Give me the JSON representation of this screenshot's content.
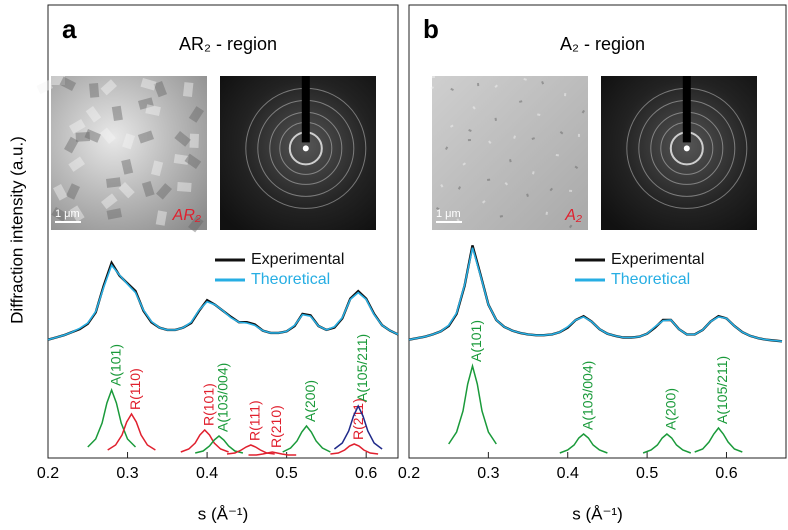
{
  "chart_data": [
    {
      "type": "line",
      "panel": "a",
      "title": "AR₂ - region",
      "ylabel": "Diffraction intensity (a.u.)",
      "xlabel": "s (Å⁻¹)",
      "xlim": [
        0.2,
        0.64
      ],
      "xticks": [
        0.2,
        0.3,
        0.4,
        0.5,
        0.6
      ],
      "ylim": [
        0,
        4.64
      ],
      "peaks_ylim": [
        0,
        1
      ],
      "insets": {
        "scale_bar": "1 μm",
        "label": "AR₂"
      },
      "x": [
        0.2,
        0.21,
        0.22,
        0.23,
        0.24,
        0.25,
        0.26,
        0.27,
        0.28,
        0.29,
        0.3,
        0.31,
        0.32,
        0.33,
        0.34,
        0.35,
        0.36,
        0.37,
        0.38,
        0.39,
        0.4,
        0.41,
        0.42,
        0.43,
        0.44,
        0.45,
        0.46,
        0.47,
        0.48,
        0.49,
        0.5,
        0.51,
        0.52,
        0.53,
        0.54,
        0.55,
        0.56,
        0.57,
        0.58,
        0.59,
        0.6,
        0.61,
        0.62,
        0.63,
        0.64
      ],
      "series": [
        {
          "name": "Experimental",
          "color": "#111111",
          "values": [
            0.24,
            0.27,
            0.3,
            0.34,
            0.38,
            0.45,
            0.6,
            0.95,
            1.25,
            1.08,
            0.98,
            0.88,
            0.62,
            0.47,
            0.4,
            0.37,
            0.37,
            0.4,
            0.46,
            0.62,
            0.76,
            0.7,
            0.62,
            0.54,
            0.47,
            0.47,
            0.44,
            0.36,
            0.33,
            0.33,
            0.35,
            0.42,
            0.58,
            0.56,
            0.42,
            0.37,
            0.4,
            0.52,
            0.78,
            0.88,
            0.78,
            0.58,
            0.43,
            0.36,
            0.31
          ]
        },
        {
          "name": "Theoretical",
          "color": "#27aee3",
          "values": [
            0.24,
            0.27,
            0.3,
            0.34,
            0.39,
            0.46,
            0.61,
            0.93,
            1.22,
            1.09,
            0.97,
            0.86,
            0.63,
            0.48,
            0.4,
            0.37,
            0.37,
            0.4,
            0.47,
            0.63,
            0.74,
            0.7,
            0.62,
            0.53,
            0.47,
            0.46,
            0.43,
            0.36,
            0.33,
            0.33,
            0.35,
            0.43,
            0.57,
            0.55,
            0.42,
            0.37,
            0.41,
            0.53,
            0.77,
            0.86,
            0.77,
            0.57,
            0.43,
            0.36,
            0.31
          ]
        }
      ],
      "peaks": [
        {
          "name": "A(101)",
          "color": "#1a9a3a",
          "x": [
            0.25,
            0.26,
            0.268,
            0.274,
            0.28,
            0.286,
            0.292,
            0.3,
            0.31
          ],
          "values": [
            0.09,
            0.17,
            0.33,
            0.53,
            0.66,
            0.53,
            0.33,
            0.17,
            0.09
          ]
        },
        {
          "name": "R(110)",
          "color": "#e0202e",
          "x": [
            0.275,
            0.285,
            0.293,
            0.299,
            0.305,
            0.311,
            0.317,
            0.325,
            0.335
          ],
          "values": [
            0.06,
            0.11,
            0.21,
            0.34,
            0.42,
            0.34,
            0.21,
            0.11,
            0.06
          ]
        },
        {
          "name": "R(101)",
          "color": "#e0202e",
          "x": [
            0.367,
            0.377,
            0.385,
            0.391,
            0.397,
            0.403,
            0.409,
            0.417,
            0.427
          ],
          "values": [
            0.04,
            0.07,
            0.13,
            0.21,
            0.26,
            0.21,
            0.13,
            0.07,
            0.04
          ]
        },
        {
          "name": "A(103/004)",
          "color": "#1a9a3a",
          "x": [
            0.385,
            0.395,
            0.403,
            0.409,
            0.415,
            0.421,
            0.427,
            0.435,
            0.445
          ],
          "values": [
            0.03,
            0.05,
            0.1,
            0.16,
            0.2,
            0.16,
            0.1,
            0.05,
            0.03
          ]
        },
        {
          "name": "R(111)",
          "color": "#e0202e",
          "x": [
            0.425,
            0.435,
            0.443,
            0.449,
            0.455,
            0.461,
            0.467,
            0.475,
            0.485
          ],
          "values": [
            0.02,
            0.03,
            0.06,
            0.09,
            0.11,
            0.09,
            0.06,
            0.03,
            0.02
          ]
        },
        {
          "name": "R(210)",
          "color": "#e0202e",
          "x": [
            0.452,
            0.462,
            0.47,
            0.476,
            0.482,
            0.488,
            0.494,
            0.502,
            0.512
          ],
          "values": [
            0.01,
            0.01,
            0.02,
            0.03,
            0.04,
            0.03,
            0.02,
            0.01,
            0.01
          ]
        },
        {
          "name": "A(200)",
          "color": "#1a9a3a",
          "x": [
            0.495,
            0.505,
            0.513,
            0.519,
            0.525,
            0.531,
            0.537,
            0.545,
            0.555
          ],
          "values": [
            0.04,
            0.08,
            0.15,
            0.24,
            0.3,
            0.24,
            0.15,
            0.08,
            0.04
          ]
        },
        {
          "name": "R(211)",
          "color": "#e0202e",
          "x": [
            0.555,
            0.565,
            0.573,
            0.579,
            0.585,
            0.591,
            0.597,
            0.605,
            0.615
          ],
          "values": [
            0.02,
            0.03,
            0.06,
            0.1,
            0.12,
            0.1,
            0.06,
            0.03,
            0.02
          ]
        },
        {
          "name": "A(105/211)",
          "color": "#1a9a3a",
          "line_color": "#202a8a",
          "x": [
            0.56,
            0.57,
            0.578,
            0.584,
            0.59,
            0.596,
            0.602,
            0.61,
            0.62
          ],
          "values": [
            0.07,
            0.13,
            0.25,
            0.4,
            0.5,
            0.4,
            0.25,
            0.13,
            0.07
          ]
        }
      ]
    },
    {
      "type": "line",
      "panel": "b",
      "title": "A₂ - region",
      "xlabel": "s (Å⁻¹)",
      "xlim": [
        0.2,
        0.675
      ],
      "xticks": [
        0.2,
        0.3,
        0.4,
        0.5,
        0.6
      ],
      "ylim": [
        0,
        4.64
      ],
      "peaks_ylim": [
        0,
        1
      ],
      "insets": {
        "scale_bar": "1 μm",
        "label": "A₂"
      },
      "x": [
        0.2,
        0.21,
        0.22,
        0.23,
        0.24,
        0.25,
        0.26,
        0.27,
        0.28,
        0.29,
        0.3,
        0.31,
        0.32,
        0.33,
        0.34,
        0.35,
        0.36,
        0.37,
        0.38,
        0.39,
        0.4,
        0.41,
        0.42,
        0.43,
        0.44,
        0.45,
        0.46,
        0.47,
        0.48,
        0.49,
        0.5,
        0.51,
        0.52,
        0.53,
        0.54,
        0.55,
        0.56,
        0.57,
        0.58,
        0.59,
        0.6,
        0.61,
        0.62,
        0.63,
        0.64,
        0.65,
        0.66,
        0.67
      ],
      "series": [
        {
          "name": "Experimental",
          "color": "#111111",
          "values": [
            0.24,
            0.26,
            0.28,
            0.31,
            0.35,
            0.42,
            0.58,
            0.95,
            1.48,
            1.1,
            0.7,
            0.5,
            0.41,
            0.36,
            0.33,
            0.31,
            0.3,
            0.3,
            0.31,
            0.34,
            0.4,
            0.5,
            0.55,
            0.48,
            0.38,
            0.32,
            0.29,
            0.27,
            0.27,
            0.28,
            0.32,
            0.4,
            0.5,
            0.5,
            0.38,
            0.31,
            0.31,
            0.37,
            0.48,
            0.55,
            0.52,
            0.42,
            0.34,
            0.29,
            0.26,
            0.24,
            0.23,
            0.22
          ]
        },
        {
          "name": "Theoretical",
          "color": "#27aee3",
          "values": [
            0.24,
            0.26,
            0.28,
            0.31,
            0.35,
            0.43,
            0.59,
            0.96,
            1.45,
            1.09,
            0.7,
            0.5,
            0.41,
            0.36,
            0.33,
            0.31,
            0.3,
            0.3,
            0.31,
            0.34,
            0.41,
            0.5,
            0.54,
            0.48,
            0.38,
            0.32,
            0.29,
            0.27,
            0.27,
            0.28,
            0.32,
            0.41,
            0.49,
            0.5,
            0.38,
            0.31,
            0.31,
            0.37,
            0.48,
            0.54,
            0.52,
            0.42,
            0.34,
            0.29,
            0.26,
            0.24,
            0.23,
            0.22
          ]
        }
      ],
      "peaks": [
        {
          "name": "A(101)",
          "color": "#1a9a3a",
          "x": [
            0.25,
            0.26,
            0.268,
            0.274,
            0.28,
            0.286,
            0.292,
            0.3,
            0.31
          ],
          "values": [
            0.12,
            0.24,
            0.45,
            0.72,
            0.9,
            0.72,
            0.45,
            0.24,
            0.12
          ]
        },
        {
          "name": "A(103/004)",
          "color": "#1a9a3a",
          "x": [
            0.39,
            0.4,
            0.408,
            0.414,
            0.42,
            0.426,
            0.432,
            0.44,
            0.45
          ],
          "values": [
            0.03,
            0.06,
            0.11,
            0.18,
            0.22,
            0.18,
            0.11,
            0.06,
            0.03
          ]
        },
        {
          "name": "A(200)",
          "color": "#1a9a3a",
          "x": [
            0.495,
            0.505,
            0.513,
            0.519,
            0.525,
            0.531,
            0.537,
            0.545,
            0.555
          ],
          "values": [
            0.03,
            0.06,
            0.11,
            0.18,
            0.22,
            0.18,
            0.11,
            0.06,
            0.03
          ]
        },
        {
          "name": "A(105/211)",
          "color": "#1a9a3a",
          "x": [
            0.56,
            0.57,
            0.578,
            0.584,
            0.59,
            0.596,
            0.602,
            0.61,
            0.62
          ],
          "values": [
            0.04,
            0.07,
            0.14,
            0.22,
            0.28,
            0.22,
            0.14,
            0.07,
            0.04
          ]
        }
      ]
    }
  ]
}
